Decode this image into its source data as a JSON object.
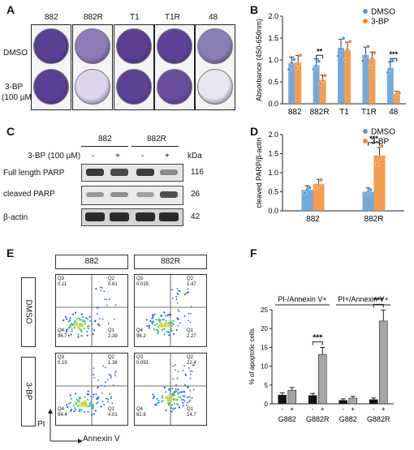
{
  "figure": {
    "panel_letters": [
      "A",
      "B",
      "C",
      "D",
      "E",
      "F"
    ]
  },
  "panel_a": {
    "columns": [
      "882",
      "882R",
      "T1",
      "T1R",
      "48"
    ],
    "rows": [
      "DMSO",
      "3-BP",
      "(100 µM)"
    ]
  },
  "panel_b": {
    "chart_data": {
      "type": "bar",
      "ylabel": "Absorbance (450-650nm)",
      "categories": [
        "882",
        "882R",
        "T1",
        "T1R",
        "48"
      ],
      "ylim": [
        0,
        2.0
      ],
      "yticks": [
        "0.0",
        "0.5",
        "1.0",
        "1.5",
        "2.0"
      ],
      "series": [
        {
          "name": "DMSO",
          "color": "#5b9bd5",
          "values": [
            0.92,
            0.88,
            1.28,
            1.12,
            0.82
          ]
        },
        {
          "name": "3-BP",
          "color": "#f28b30",
          "values": [
            0.95,
            0.55,
            1.22,
            1.02,
            0.22
          ]
        }
      ],
      "significance": [
        "",
        "**",
        "",
        "",
        "***"
      ],
      "legend": "top-right"
    }
  },
  "panel_c": {
    "cells": [
      "882",
      "882R"
    ],
    "treatment_label": "3-BP (100 µM)",
    "signs": [
      "-",
      "+",
      "-",
      "+"
    ],
    "kda_label": "kDa",
    "proteins": [
      {
        "name": "Full length PARP",
        "kda": "116"
      },
      {
        "name": "cleaved PARP",
        "kda": "26"
      },
      {
        "name": "β-actin",
        "kda": "42"
      }
    ]
  },
  "panel_d": {
    "chart_data": {
      "type": "bar",
      "ylabel": "cleaved PARP/β-actin",
      "categories": [
        "882",
        "882R"
      ],
      "ylim": [
        0,
        2.0
      ],
      "yticks": [
        "0.0",
        "0.5",
        "1.0",
        "1.5",
        "2.0"
      ],
      "series": [
        {
          "name": "DMSO",
          "color": "#5b9bd5",
          "values": [
            0.55,
            0.5
          ]
        },
        {
          "name": "3-BP",
          "color": "#f28b30",
          "values": [
            0.7,
            1.45
          ]
        }
      ],
      "significance": [
        "",
        "***"
      ],
      "legend": "top-right"
    }
  },
  "panel_e": {
    "columns": [
      "882",
      "882R"
    ],
    "rows": [
      "DMSO",
      "3-BP"
    ],
    "y_axis_label": "PI",
    "x_axis_label": "Annexin V",
    "quadrants": [
      {
        "q3": "Q3",
        "q3v": "0.11",
        "q2": "Q2",
        "q2v": "0.81",
        "q4": "Q4",
        "q4v": "96.7",
        "q1": "Q1",
        "q1v": "2.39"
      },
      {
        "q3": "Q3",
        "q3v": "0.015",
        "q2": "Q2",
        "q2v": "1.47",
        "q4": "Q4",
        "q4v": "96.2",
        "q1": "Q1",
        "q1v": "2.27"
      },
      {
        "q3": "Q3",
        "q3v": "0.19",
        "q2": "Q2",
        "q2v": "1.36",
        "q4": "Q4",
        "q4v": "94.4",
        "q1": "Q1",
        "q1v": "4.01"
      },
      {
        "q3": "Q3",
        "q3v": "0.091",
        "q2": "Q2",
        "q2v": "22.4",
        "q4": "Q4",
        "q4v": "62.8",
        "q1": "Q1",
        "q1v": "14.7"
      }
    ]
  },
  "panel_f": {
    "chart_data": {
      "type": "bar",
      "ylabel": "% of apoptotic cells",
      "group_labels": [
        "PI-/Annexin V+",
        "PI+/Annexin V+"
      ],
      "categories": [
        "G882",
        "G882R",
        "G882",
        "G882R"
      ],
      "signs": [
        "-",
        "+"
      ],
      "ylim": [
        0,
        25
      ],
      "yticks": [
        "0",
        "5",
        "10",
        "15",
        "20",
        "25"
      ],
      "series": [
        {
          "name": "-",
          "color": "#111111",
          "values": [
            2.3,
            2.2,
            0.9,
            1.1
          ]
        },
        {
          "name": "+",
          "color": "#a6a6a6",
          "values": [
            3.6,
            13.1,
            1.5,
            22.0
          ]
        }
      ],
      "significance": [
        "",
        "***",
        "",
        "***"
      ]
    }
  }
}
